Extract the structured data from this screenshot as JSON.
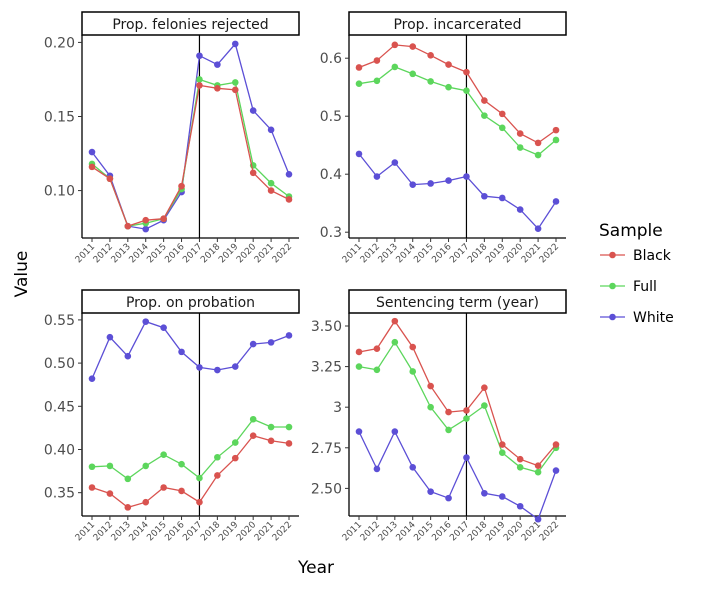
{
  "chart_data": {
    "type": "line",
    "xlabel": "Year",
    "ylabel": "Value",
    "x": [
      2011,
      2012,
      2013,
      2014,
      2015,
      2016,
      2017,
      2018,
      2019,
      2020,
      2021,
      2022
    ],
    "vline_x": 2017,
    "grid": false,
    "legend": {
      "title": "Sample",
      "placement": "right",
      "entries": [
        {
          "name": "Black",
          "color": "#d9534f"
        },
        {
          "name": "Full",
          "color": "#5cd65c"
        },
        {
          "name": "White",
          "color": "#5c4fd6"
        }
      ]
    },
    "panels": [
      {
        "title": "Prop. felonies rejected",
        "ylim": [
          0.068,
          0.205
        ],
        "yticks": [
          0.1,
          0.15,
          0.2
        ],
        "ytick_labels": [
          "0.10",
          "0.15",
          "0.20"
        ],
        "series": [
          {
            "name": "Black",
            "values": [
              0.116,
              0.108,
              0.076,
              0.08,
              0.081,
              0.103,
              0.171,
              0.169,
              0.168,
              0.112,
              0.1,
              0.094
            ]
          },
          {
            "name": "Full",
            "values": [
              0.118,
              0.108,
              0.076,
              0.078,
              0.081,
              0.101,
              0.175,
              0.171,
              0.173,
              0.117,
              0.105,
              0.096
            ]
          },
          {
            "name": "White",
            "values": [
              0.126,
              0.11,
              0.076,
              0.074,
              0.08,
              0.099,
              0.191,
              0.185,
              0.199,
              0.154,
              0.141,
              0.111
            ]
          }
        ]
      },
      {
        "title": "Prop. incarcerated",
        "ylim": [
          0.29,
          0.64
        ],
        "yticks": [
          0.3,
          0.4,
          0.5,
          0.6
        ],
        "ytick_labels": [
          "0.3",
          "0.4",
          "0.5",
          "0.6"
        ],
        "series": [
          {
            "name": "Black",
            "values": [
              0.584,
              0.596,
              0.623,
              0.62,
              0.605,
              0.589,
              0.576,
              0.527,
              0.504,
              0.47,
              0.454,
              0.476
            ]
          },
          {
            "name": "Full",
            "values": [
              0.556,
              0.561,
              0.585,
              0.573,
              0.56,
              0.55,
              0.544,
              0.501,
              0.48,
              0.446,
              0.433,
              0.459
            ]
          },
          {
            "name": "White",
            "values": [
              0.435,
              0.396,
              0.42,
              0.382,
              0.384,
              0.389,
              0.396,
              0.362,
              0.359,
              0.339,
              0.306,
              0.353
            ]
          }
        ]
      },
      {
        "title": "Prop. on probation",
        "ylim": [
          0.323,
          0.558
        ],
        "yticks": [
          0.35,
          0.4,
          0.45,
          0.5,
          0.55
        ],
        "ytick_labels": [
          "0.35",
          "0.40",
          "0.45",
          "0.50",
          "0.55"
        ],
        "series": [
          {
            "name": "Black",
            "values": [
              0.356,
              0.349,
              0.333,
              0.339,
              0.356,
              0.352,
              0.339,
              0.37,
              0.39,
              0.416,
              0.41,
              0.407
            ]
          },
          {
            "name": "Full",
            "values": [
              0.38,
              0.381,
              0.366,
              0.381,
              0.394,
              0.383,
              0.367,
              0.391,
              0.408,
              0.435,
              0.426,
              0.426
            ]
          },
          {
            "name": "White",
            "values": [
              0.482,
              0.53,
              0.508,
              0.548,
              0.541,
              0.513,
              0.495,
              0.492,
              0.496,
              0.522,
              0.524,
              0.532
            ]
          }
        ]
      },
      {
        "title": "Sentencing term (year)",
        "ylim": [
          2.33,
          3.58
        ],
        "yticks": [
          2.5,
          2.75,
          3.0,
          3.25,
          3.5
        ],
        "ytick_labels": [
          "2.50",
          "2.75",
          "3",
          "3.25",
          "3.50"
        ],
        "series": [
          {
            "name": "Black",
            "values": [
              3.34,
              3.36,
              3.53,
              3.37,
              3.13,
              2.97,
              2.98,
              3.12,
              2.77,
              2.68,
              2.64,
              2.77
            ]
          },
          {
            "name": "Full",
            "values": [
              3.25,
              3.23,
              3.4,
              3.22,
              3.0,
              2.86,
              2.93,
              3.01,
              2.72,
              2.63,
              2.6,
              2.75
            ]
          },
          {
            "name": "White",
            "values": [
              2.85,
              2.62,
              2.85,
              2.63,
              2.48,
              2.44,
              2.69,
              2.47,
              2.45,
              2.39,
              2.31,
              2.61
            ]
          }
        ]
      }
    ]
  }
}
